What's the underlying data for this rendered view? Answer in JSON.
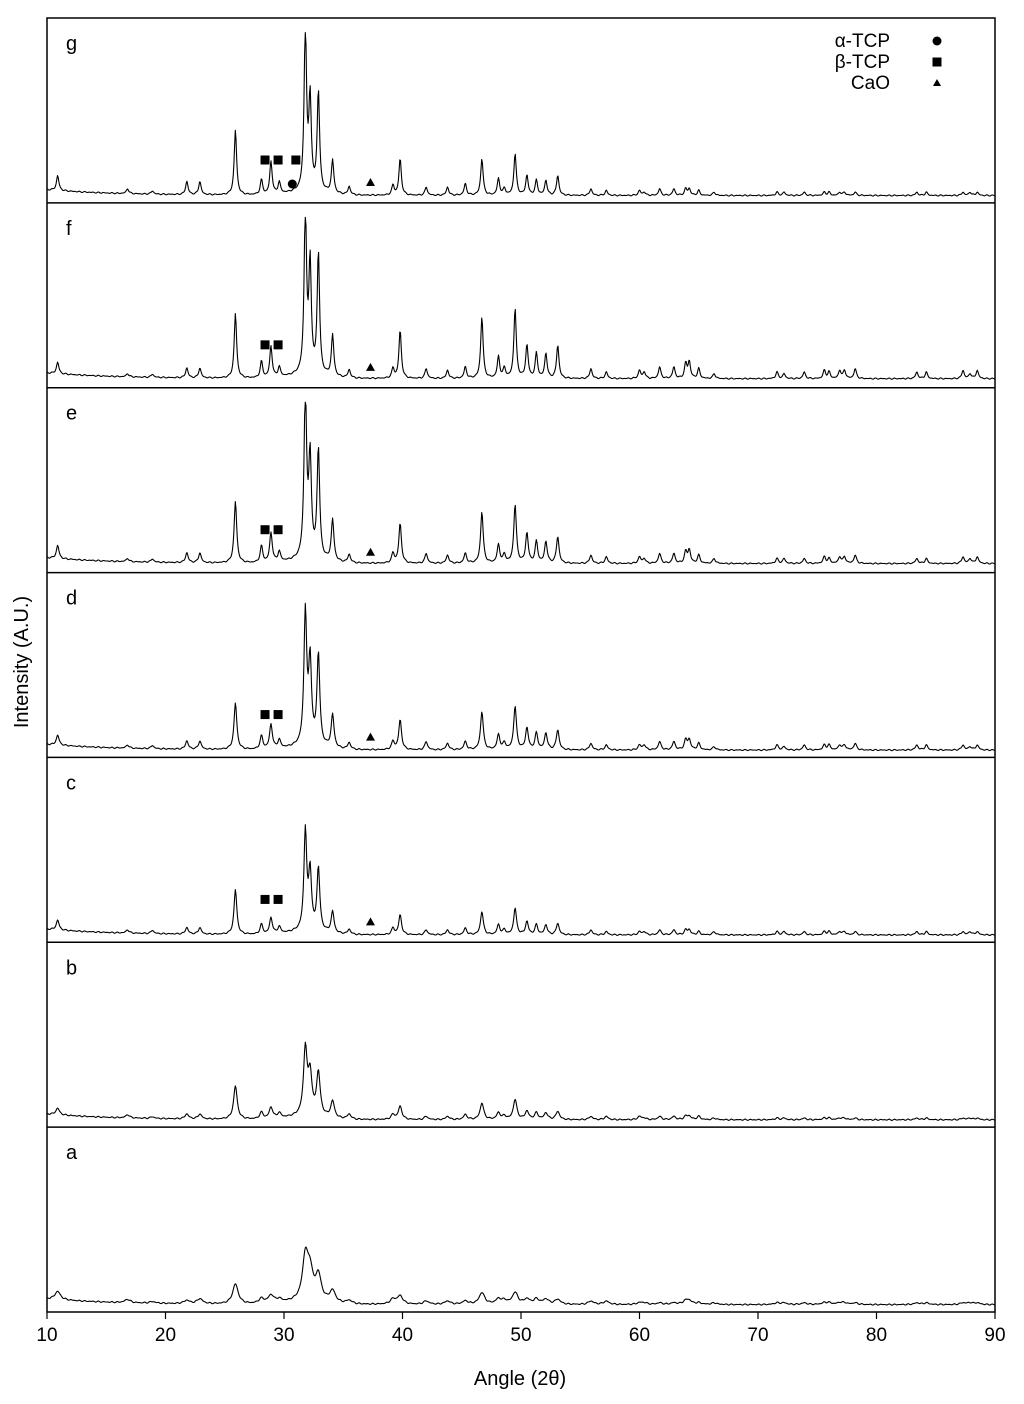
{
  "chart_data": {
    "type": "line",
    "layout": "stacked-panels",
    "xlabel": "Angle (2θ)",
    "ylabel": "Intensity (A.U.)",
    "xlim": [
      10,
      90
    ],
    "xticks": [
      "10",
      "20",
      "30",
      "40",
      "50",
      "60",
      "70",
      "80",
      "90"
    ],
    "grid": false,
    "legend": {
      "placement": "top-right",
      "entries": [
        {
          "label": "α-TCP",
          "marker": "circle"
        },
        {
          "label": "β-TCP",
          "marker": "square"
        },
        {
          "label": "CaO",
          "marker": "triangle"
        }
      ]
    },
    "peak_positions": [
      10.9,
      16.8,
      18.9,
      21.8,
      22.9,
      25.9,
      28.1,
      28.9,
      29.6,
      31.8,
      32.2,
      32.9,
      34.1,
      35.5,
      39.2,
      39.8,
      42.0,
      43.8,
      45.3,
      46.7,
      48.1,
      48.6,
      49.5,
      50.5,
      51.3,
      52.1,
      53.1,
      55.9,
      57.2,
      60.0,
      60.4,
      61.7,
      62.9,
      63.9,
      64.2,
      65.0,
      66.3,
      71.6,
      72.2,
      73.9,
      75.6,
      76.0,
      76.9,
      77.3,
      78.2,
      83.4,
      84.2,
      87.3,
      87.9,
      88.5
    ],
    "panels": [
      {
        "label": "g",
        "baseline": 0.02,
        "peak_width": 0.12,
        "peak_intensities": [
          0.09,
          0.03,
          0.02,
          0.08,
          0.08,
          0.39,
          0.09,
          0.2,
          0.07,
          1.0,
          0.55,
          0.6,
          0.2,
          0.05,
          0.06,
          0.22,
          0.05,
          0.05,
          0.07,
          0.22,
          0.1,
          0.04,
          0.25,
          0.12,
          0.09,
          0.09,
          0.12,
          0.04,
          0.03,
          0.03,
          0.02,
          0.04,
          0.04,
          0.04,
          0.04,
          0.03,
          0.02,
          0.02,
          0.02,
          0.02,
          0.02,
          0.02,
          0.02,
          0.02,
          0.02,
          0.02,
          0.02,
          0.02,
          0.02,
          0.02
        ],
        "phase_markers": [
          {
            "phase": "β-TCP",
            "x": [
              28.4,
              29.5,
              31.0
            ]
          },
          {
            "phase": "α-TCP",
            "x": [
              30.7
            ]
          },
          {
            "phase": "CaO",
            "x": [
              37.3
            ]
          }
        ]
      },
      {
        "label": "f",
        "baseline": 0.03,
        "peak_width": 0.12,
        "peak_intensities": [
          0.07,
          0.02,
          0.02,
          0.06,
          0.06,
          0.39,
          0.1,
          0.19,
          0.06,
          1.0,
          0.66,
          0.73,
          0.25,
          0.05,
          0.06,
          0.29,
          0.06,
          0.05,
          0.07,
          0.37,
          0.13,
          0.06,
          0.42,
          0.2,
          0.15,
          0.15,
          0.2,
          0.06,
          0.04,
          0.05,
          0.04,
          0.07,
          0.07,
          0.09,
          0.1,
          0.06,
          0.03,
          0.04,
          0.03,
          0.04,
          0.05,
          0.04,
          0.05,
          0.05,
          0.06,
          0.04,
          0.04,
          0.05,
          0.03,
          0.05
        ],
        "phase_markers": [
          {
            "phase": "β-TCP",
            "x": [
              28.4,
              29.5
            ]
          },
          {
            "phase": "CaO",
            "x": [
              37.3
            ]
          }
        ]
      },
      {
        "label": "e",
        "baseline": 0.03,
        "peak_width": 0.13,
        "peak_intensities": [
          0.08,
          0.02,
          0.02,
          0.06,
          0.06,
          0.37,
          0.1,
          0.18,
          0.06,
          1.0,
          0.6,
          0.66,
          0.25,
          0.05,
          0.06,
          0.24,
          0.06,
          0.05,
          0.06,
          0.31,
          0.11,
          0.05,
          0.35,
          0.18,
          0.13,
          0.13,
          0.16,
          0.05,
          0.04,
          0.04,
          0.03,
          0.06,
          0.06,
          0.07,
          0.08,
          0.05,
          0.03,
          0.03,
          0.03,
          0.03,
          0.04,
          0.03,
          0.04,
          0.04,
          0.05,
          0.03,
          0.03,
          0.04,
          0.03,
          0.04
        ],
        "phase_markers": [
          {
            "phase": "β-TCP",
            "x": [
              28.4,
              29.5
            ]
          },
          {
            "phase": "CaO",
            "x": [
              37.3
            ]
          }
        ]
      },
      {
        "label": "d",
        "baseline": 0.02,
        "peak_width": 0.14,
        "peak_intensities": [
          0.06,
          0.02,
          0.02,
          0.05,
          0.05,
          0.28,
          0.08,
          0.15,
          0.05,
          0.8,
          0.5,
          0.55,
          0.2,
          0.04,
          0.05,
          0.18,
          0.05,
          0.04,
          0.05,
          0.23,
          0.09,
          0.04,
          0.26,
          0.13,
          0.1,
          0.1,
          0.12,
          0.04,
          0.03,
          0.03,
          0.03,
          0.05,
          0.05,
          0.06,
          0.06,
          0.04,
          0.02,
          0.03,
          0.02,
          0.03,
          0.03,
          0.03,
          0.03,
          0.03,
          0.04,
          0.03,
          0.03,
          0.03,
          0.02,
          0.03
        ],
        "phase_markers": [
          {
            "phase": "β-TCP",
            "x": [
              28.4,
              29.5
            ]
          },
          {
            "phase": "CaO",
            "x": [
              37.3
            ]
          }
        ]
      },
      {
        "label": "c",
        "baseline": 0.02,
        "peak_width": 0.14,
        "peak_intensities": [
          0.06,
          0.02,
          0.02,
          0.04,
          0.04,
          0.27,
          0.06,
          0.1,
          0.04,
          0.6,
          0.35,
          0.38,
          0.13,
          0.03,
          0.04,
          0.12,
          0.03,
          0.03,
          0.04,
          0.14,
          0.06,
          0.03,
          0.16,
          0.08,
          0.06,
          0.06,
          0.07,
          0.03,
          0.02,
          0.02,
          0.02,
          0.03,
          0.03,
          0.03,
          0.03,
          0.02,
          0.02,
          0.02,
          0.02,
          0.02,
          0.02,
          0.02,
          0.02,
          0.02,
          0.02,
          0.02,
          0.02,
          0.02,
          0.02,
          0.02
        ],
        "phase_markers": [
          {
            "phase": "β-TCP",
            "x": [
              28.4,
              29.5
            ]
          },
          {
            "phase": "CaO",
            "x": [
              37.3
            ]
          }
        ]
      },
      {
        "label": "b",
        "baseline": 0.02,
        "peak_width": 0.18,
        "peak_intensities": [
          0.04,
          0.02,
          0.01,
          0.03,
          0.03,
          0.2,
          0.04,
          0.07,
          0.03,
          0.4,
          0.24,
          0.26,
          0.1,
          0.03,
          0.03,
          0.08,
          0.02,
          0.02,
          0.03,
          0.1,
          0.04,
          0.02,
          0.12,
          0.05,
          0.04,
          0.04,
          0.05,
          0.02,
          0.02,
          0.02,
          0.01,
          0.02,
          0.02,
          0.02,
          0.02,
          0.02,
          0.01,
          0.01,
          0.01,
          0.01,
          0.01,
          0.01,
          0.01,
          0.01,
          0.01,
          0.01,
          0.01,
          0.01,
          0.01,
          0.01
        ],
        "phase_markers": []
      },
      {
        "label": "a",
        "baseline": 0.02,
        "peak_width": 0.28,
        "peak_intensities": [
          0.05,
          0.02,
          0.01,
          0.02,
          0.03,
          0.12,
          0.03,
          0.05,
          0.02,
          0.26,
          0.16,
          0.15,
          0.07,
          0.02,
          0.03,
          0.05,
          0.02,
          0.02,
          0.02,
          0.07,
          0.03,
          0.02,
          0.07,
          0.03,
          0.03,
          0.03,
          0.03,
          0.02,
          0.02,
          0.01,
          0.01,
          0.01,
          0.01,
          0.02,
          0.02,
          0.01,
          0.01,
          0.01,
          0.01,
          0.01,
          0.01,
          0.01,
          0.01,
          0.01,
          0.01,
          0.01,
          0.01,
          0.01,
          0.01,
          0.01
        ],
        "phase_markers": []
      }
    ]
  }
}
